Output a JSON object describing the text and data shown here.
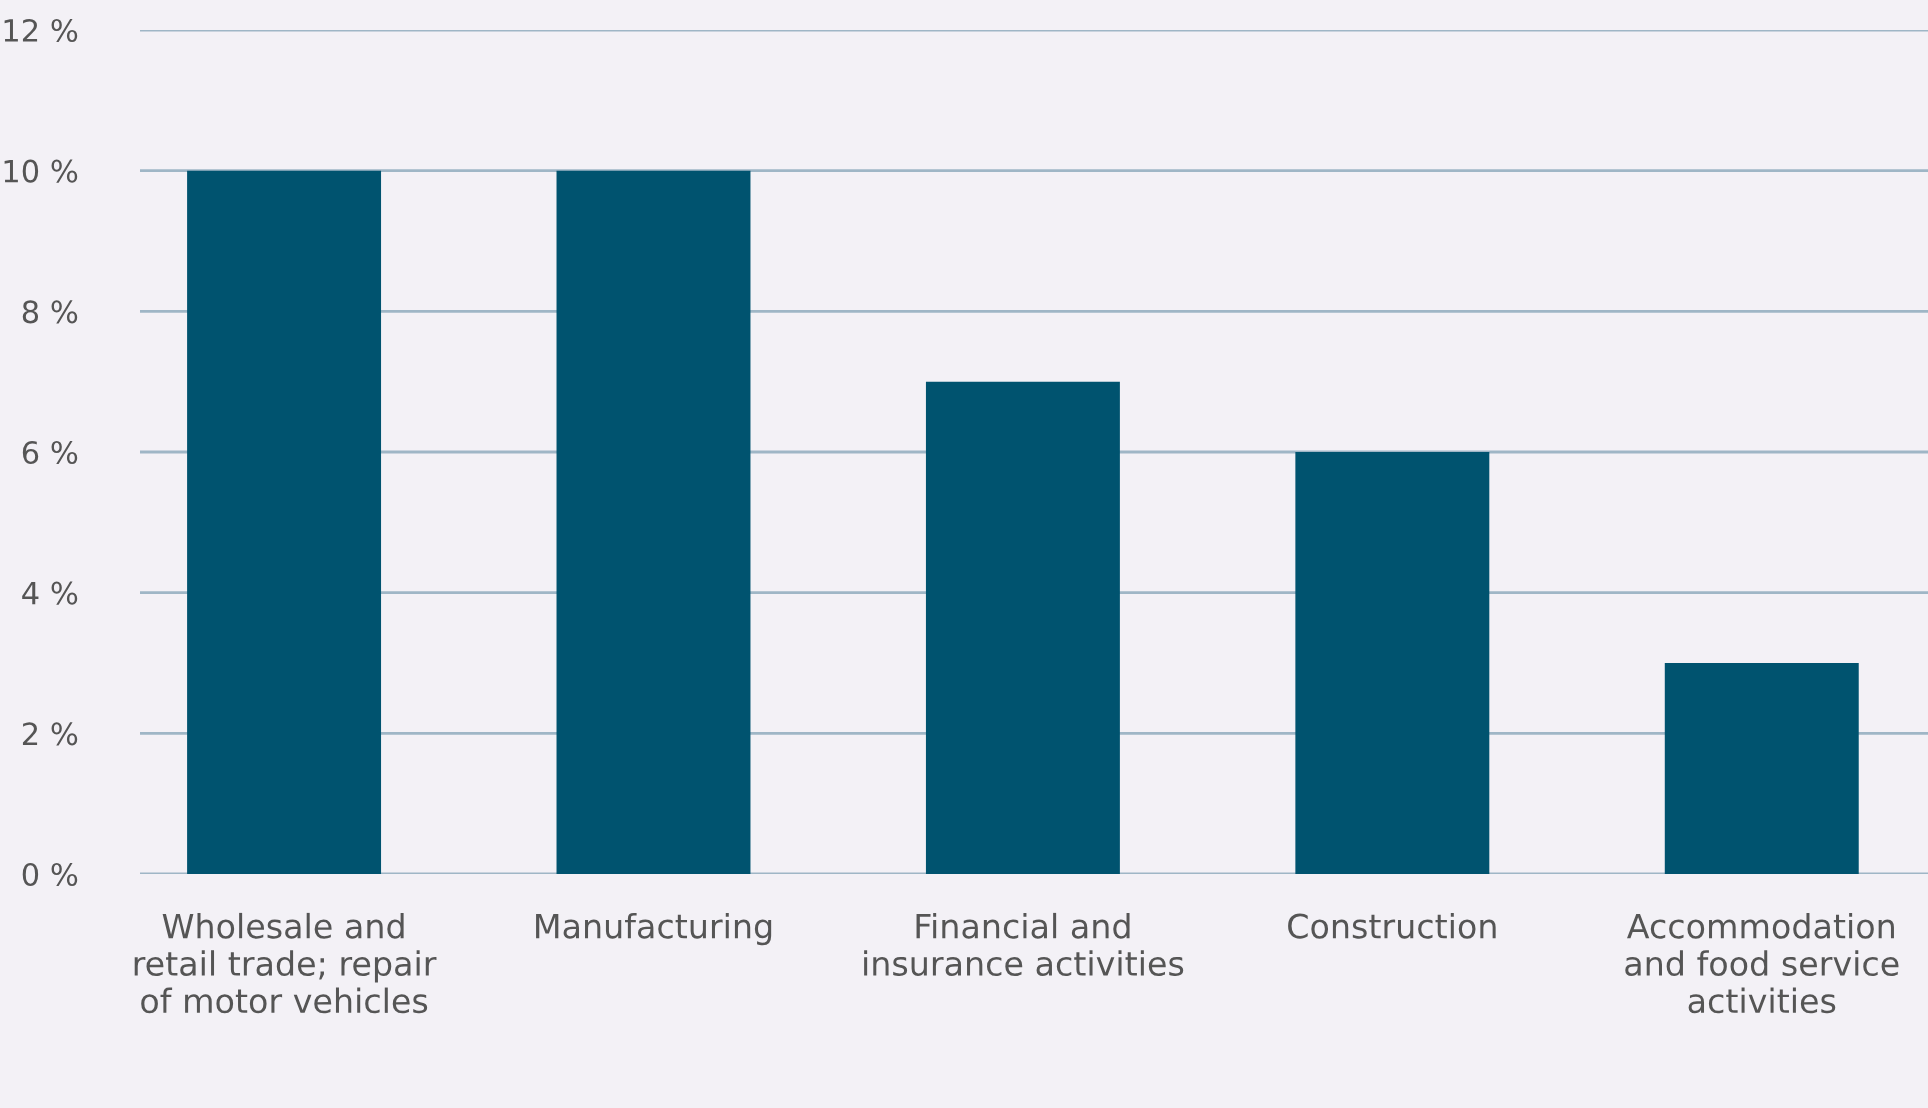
{
  "chart_data": {
    "type": "bar",
    "categories": [
      "Wholesale and\nretail trade; repair\nof motor vehicles",
      "Manufacturing",
      "Financial and\ninsurance activities",
      "Construction",
      "Accommodation\nand food service\nactivities"
    ],
    "values": [
      10,
      10,
      7,
      6,
      3
    ],
    "color": "#00536f",
    "ylim": [
      0,
      12
    ],
    "yticks": [
      {
        "value": 0,
        "label": "0 %"
      },
      {
        "value": 2,
        "label": "2 %"
      },
      {
        "value": 4,
        "label": "4 %"
      },
      {
        "value": 6,
        "label": "6 %"
      },
      {
        "value": 8,
        "label": "8 %"
      },
      {
        "value": 10,
        "label": "10 %"
      },
      {
        "value": 12,
        "label": "12 %"
      }
    ],
    "grid": "y"
  }
}
